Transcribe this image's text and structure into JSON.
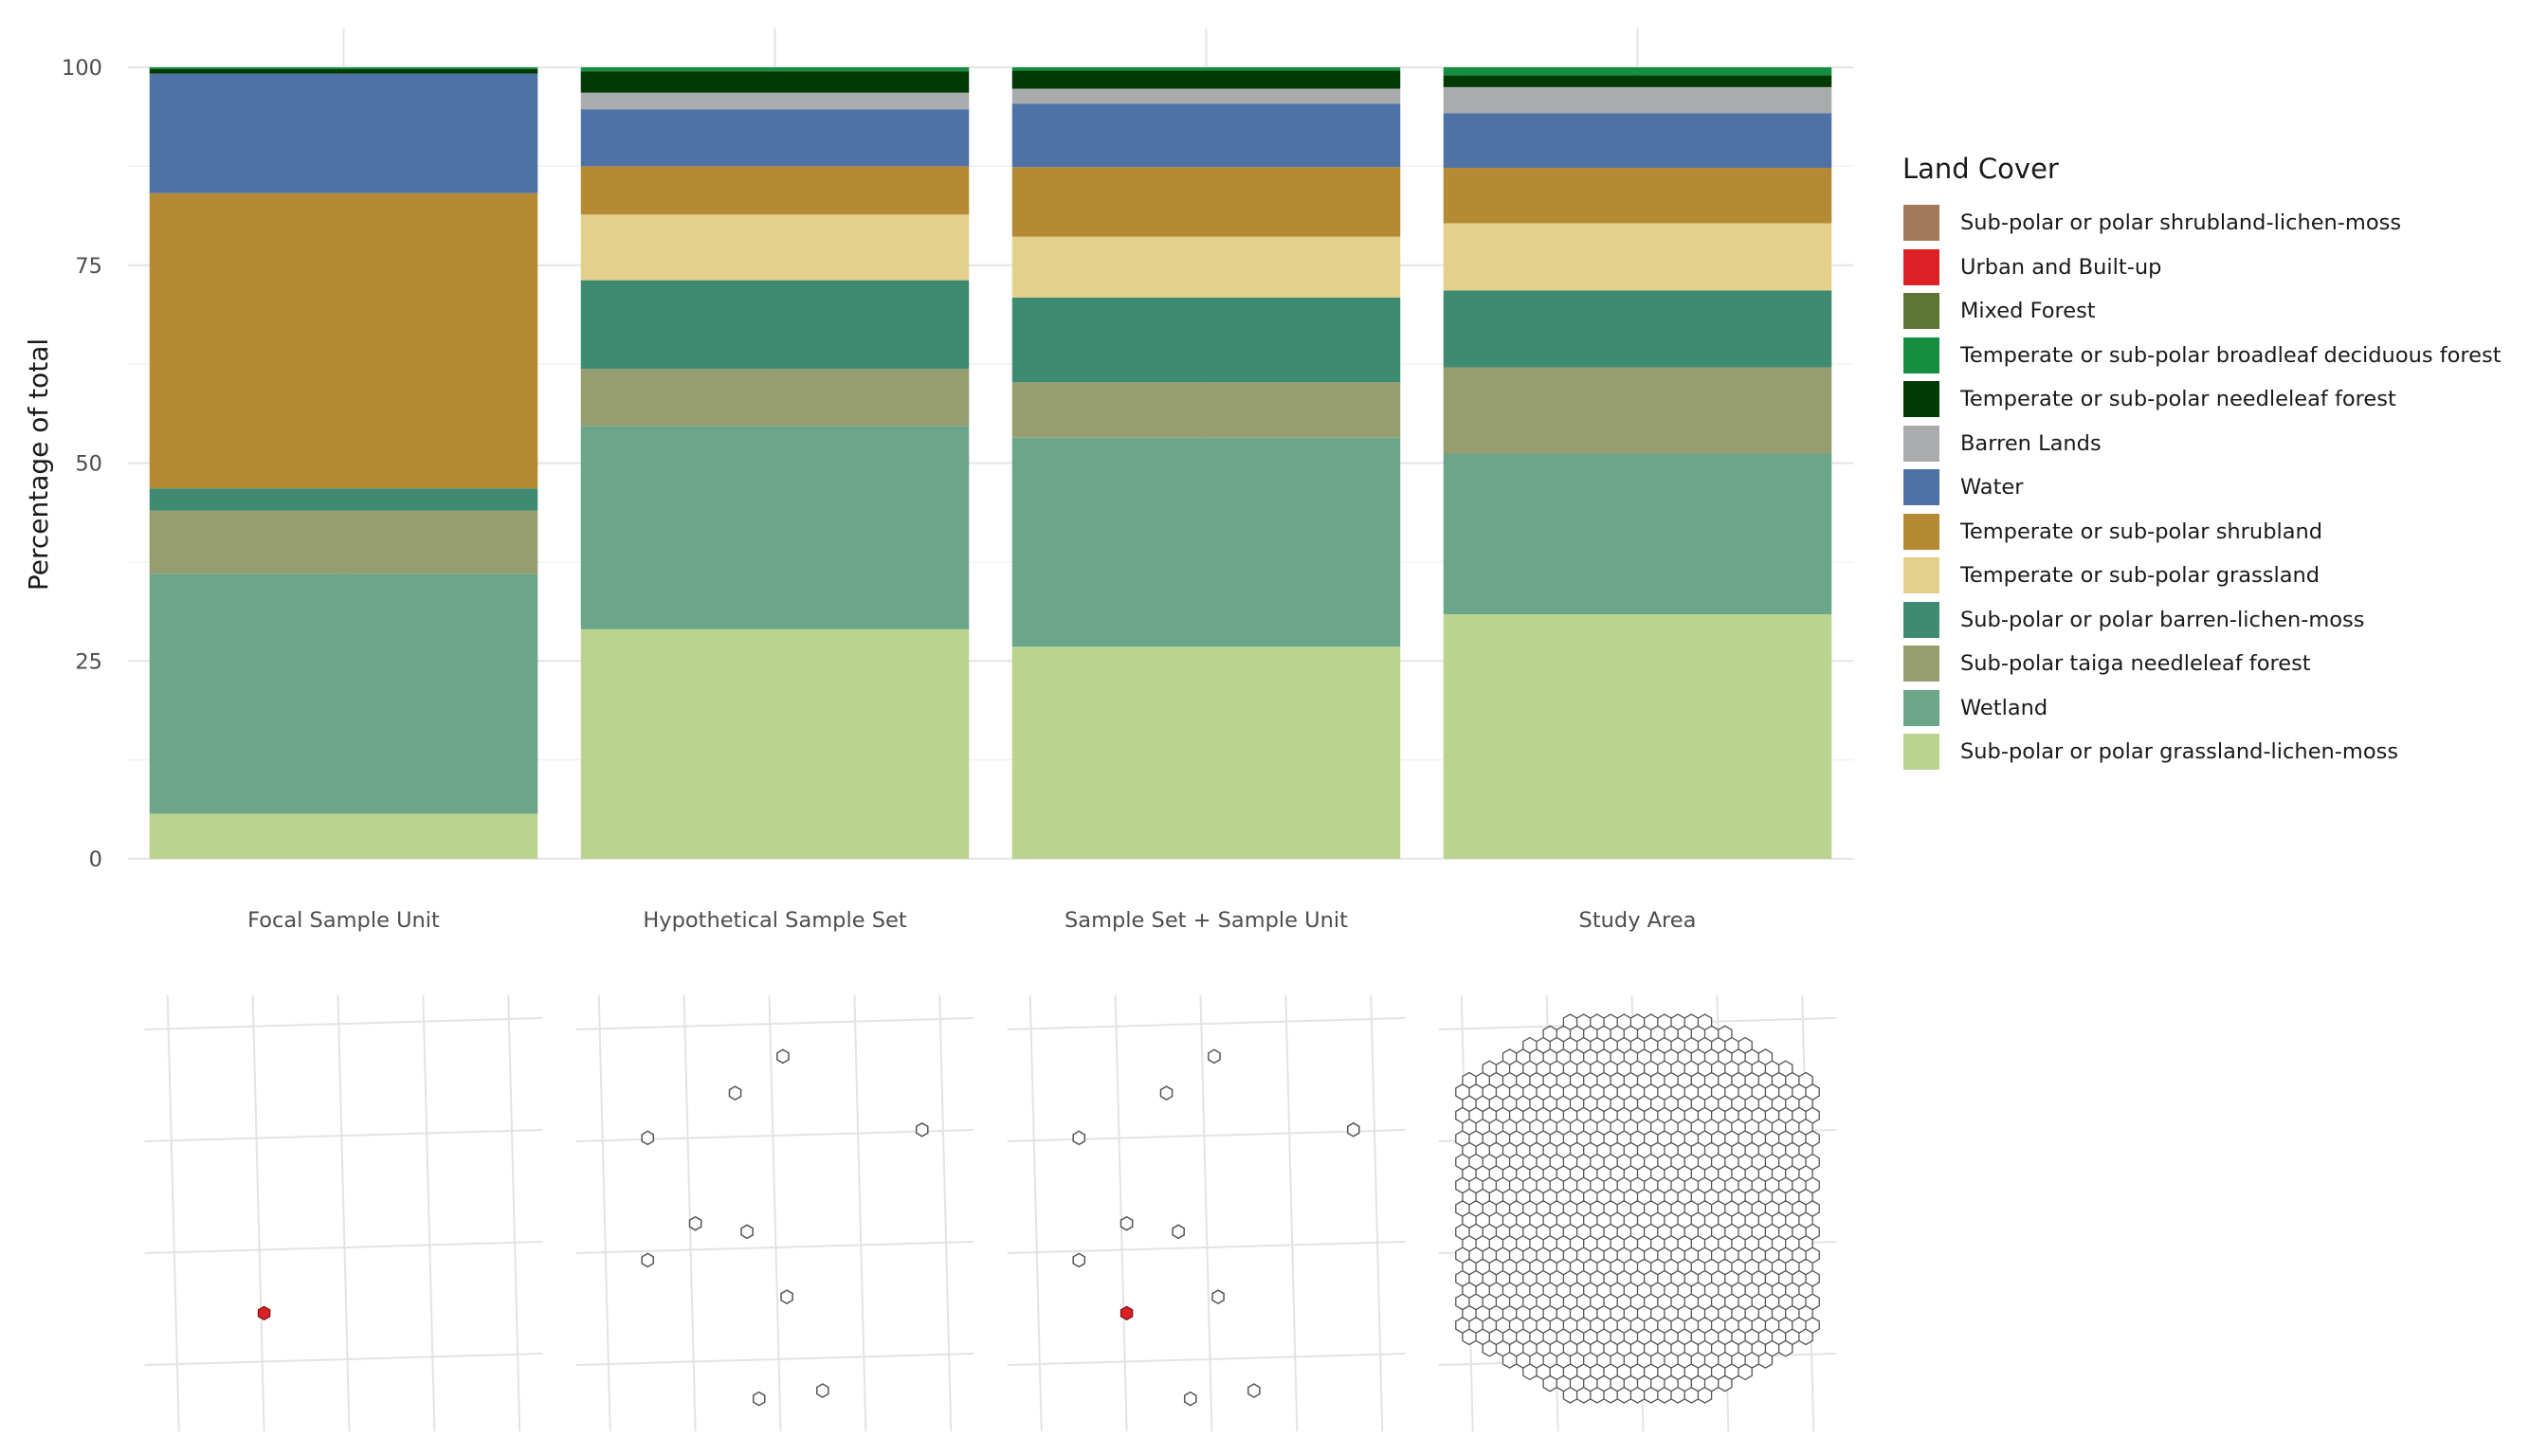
{
  "chart_data": [
    {
      "type": "bar",
      "stacked": true,
      "title": "",
      "xlabel": "",
      "ylabel": "Percentage of total",
      "ylim": [
        0,
        100
      ],
      "yticks": [
        0,
        25,
        50,
        75,
        100
      ],
      "grid": true,
      "legend_position": "right",
      "legend_title": "Land Cover",
      "categories": [
        "Focal Sample Unit",
        "Hypothetical Sample Set",
        "Sample Set + Sample Unit",
        "Study Area"
      ],
      "series": [
        {
          "name": "Sub-polar or polar grassland-lichen-moss",
          "color": "#bad48f",
          "values": [
            5.7,
            29.0,
            26.8,
            30.9
          ]
        },
        {
          "name": "Wetland",
          "color": "#6ba58a",
          "values": [
            30.3,
            25.7,
            26.4,
            20.3
          ]
        },
        {
          "name": "Sub-polar taiga needleleaf forest",
          "color": "#969d6f",
          "values": [
            8.0,
            7.2,
            7.0,
            10.9
          ]
        },
        {
          "name": "Sub-polar or polar barren-lichen-moss",
          "color": "#3f8b72",
          "values": [
            2.8,
            11.2,
            10.7,
            9.7
          ]
        },
        {
          "name": "Temperate or sub-polar grassland",
          "color": "#e3d08c",
          "values": [
            0.0,
            8.3,
            7.7,
            8.5
          ]
        },
        {
          "name": "Temperate or sub-polar shrubland",
          "color": "#b48a35",
          "values": [
            37.3,
            6.1,
            8.8,
            7.0
          ]
        },
        {
          "name": "Water",
          "color": "#4e72a6",
          "values": [
            15.1,
            7.2,
            8.0,
            6.9
          ]
        },
        {
          "name": "Barren Lands",
          "color": "#a9abac",
          "values": [
            0.0,
            2.1,
            1.9,
            3.3
          ]
        },
        {
          "name": "Temperate or sub-polar needleleaf forest",
          "color": "#003a05",
          "values": [
            0.6,
            2.7,
            2.3,
            1.5
          ]
        },
        {
          "name": "Temperate or sub-polar broadleaf deciduous forest",
          "color": "#168e41",
          "values": [
            0.2,
            0.5,
            0.4,
            1.0
          ]
        },
        {
          "name": "Mixed Forest",
          "color": "#5e7633",
          "values": [
            0.0,
            0.0,
            0.0,
            0.0
          ]
        },
        {
          "name": "Urban and Built-up",
          "color": "#dc2126",
          "values": [
            0.0,
            0.0,
            0.0,
            0.0
          ]
        },
        {
          "name": "Sub-polar or polar shrubland-lichen-moss",
          "color": "#a17a5a",
          "values": [
            0.0,
            0.0,
            0.0,
            0.0
          ]
        }
      ]
    },
    {
      "type": "map",
      "panels": [
        {
          "category": "Focal Sample Unit",
          "focal": true,
          "sample_points": []
        },
        {
          "category": "Hypothetical Sample Set",
          "focal": false,
          "sample_points": 10
        },
        {
          "category": "Sample Set + Sample Unit",
          "focal": true,
          "sample_points": 10
        },
        {
          "category": "Study Area",
          "focal": false,
          "hex_grid": true
        }
      ],
      "focal_color": "#dc2126",
      "hex_outline_color": "#555555"
    }
  ]
}
